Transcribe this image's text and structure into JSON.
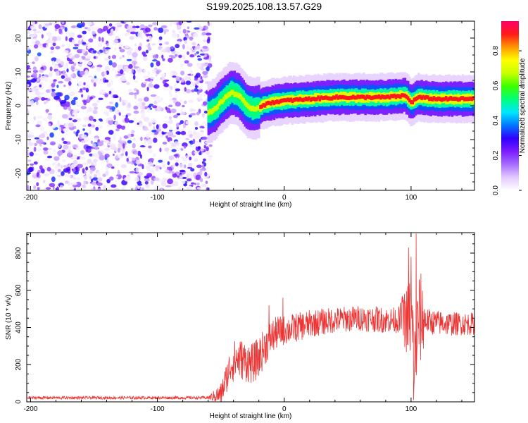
{
  "figure": {
    "title": "S199.2025.108.13.57.G29"
  },
  "chart_data": [
    {
      "type": "heatmap",
      "xlabel": "Height of straight line (km)",
      "ylabel": "Frequency (Hz)",
      "xlim": [
        -203,
        150
      ],
      "ylim": [
        -25,
        25
      ],
      "xticks": [
        -200,
        -100,
        0,
        100
      ],
      "yticks": [
        -20,
        -10,
        0,
        10,
        20
      ],
      "colorbar": {
        "label": "Normalized spectral amplitude",
        "range": [
          0,
          0.97
        ],
        "ticks": [
          0.0,
          0.2,
          0.4,
          0.6,
          0.8
        ],
        "tick_labels": [
          "0.0",
          "0.2",
          "0.4",
          "0.6",
          "0.8"
        ],
        "colors": [
          "#ffffff",
          "#e2c9ff",
          "#a76cff",
          "#7a1cff",
          "#2f00ff",
          "#0078ff",
          "#00e7ff",
          "#00ff7a",
          "#3cff00",
          "#c8ff00",
          "#ffff00",
          "#ff9900",
          "#ff1a1a",
          "#ff0066"
        ]
      },
      "regions": [
        {
          "name": "noise",
          "x_range": [
            -203,
            -58
          ],
          "f_range": [
            -25,
            25
          ],
          "amplitude_range": [
            0.02,
            0.35
          ]
        },
        {
          "name": "signal-track",
          "x_range": [
            -60,
            150
          ],
          "center_frequency": [
            [
              -60,
              -2
            ],
            [
              -55,
              -1
            ],
            [
              -48,
              2
            ],
            [
              -42,
              4
            ],
            [
              -36,
              3
            ],
            [
              -30,
              0
            ],
            [
              -24,
              -1
            ],
            [
              -18,
              0
            ],
            [
              -10,
              1
            ],
            [
              0,
              1.5
            ],
            [
              20,
              2
            ],
            [
              40,
              2.5
            ],
            [
              60,
              2.5
            ],
            [
              80,
              2.5
            ],
            [
              95,
              3
            ],
            [
              100,
              1
            ],
            [
              105,
              2.5
            ],
            [
              120,
              2
            ],
            [
              150,
              2
            ]
          ],
          "peak_amplitude": 0.9
        }
      ]
    },
    {
      "type": "line",
      "xlabel": "Height of straight line (km)",
      "ylabel": "SNR (10 * v/v)",
      "xlim": [
        -203,
        150
      ],
      "ylim": [
        0,
        910
      ],
      "xticks": [
        -200,
        -100,
        0,
        100
      ],
      "yticks": [
        0,
        200,
        400,
        600,
        800
      ],
      "series": [
        {
          "name": "SNR",
          "color": "#ee3333",
          "envelope": [
            [
              -203,
              22
            ],
            [
              -150,
              22
            ],
            [
              -100,
              22
            ],
            [
              -60,
              22
            ],
            [
              -50,
              40
            ],
            [
              -46,
              120
            ],
            [
              -42,
              200
            ],
            [
              -38,
              230
            ],
            [
              -34,
              230
            ],
            [
              -30,
              215
            ],
            [
              -25,
              205
            ],
            [
              -20,
              240
            ],
            [
              -15,
              300
            ],
            [
              -10,
              350
            ],
            [
              -5,
              375
            ],
            [
              0,
              385
            ],
            [
              10,
              400
            ],
            [
              20,
              420
            ],
            [
              40,
              440
            ],
            [
              60,
              450
            ],
            [
              80,
              440
            ],
            [
              95,
              440
            ],
            [
              100,
              450
            ],
            [
              103,
              200
            ],
            [
              106,
              450
            ],
            [
              115,
              430
            ],
            [
              130,
              420
            ],
            [
              150,
              420
            ]
          ],
          "noise": [
            [
              -203,
              8
            ],
            [
              -60,
              8
            ],
            [
              -50,
              60
            ],
            [
              -40,
              110
            ],
            [
              -20,
              110
            ],
            [
              0,
              80
            ],
            [
              40,
              70
            ],
            [
              90,
              70
            ],
            [
              100,
              250
            ],
            [
              108,
              250
            ],
            [
              112,
              70
            ],
            [
              150,
              60
            ]
          ],
          "spikes": [
            [
              -12,
              520
            ],
            [
              -1,
              560
            ],
            [
              93,
              570
            ],
            [
              98,
              830
            ],
            [
              100,
              780
            ],
            [
              104,
              905
            ],
            [
              102,
              10
            ]
          ]
        }
      ]
    }
  ]
}
